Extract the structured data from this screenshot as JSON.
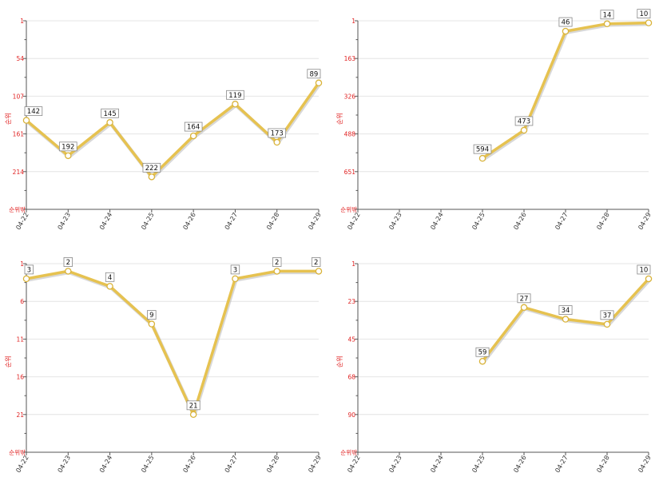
{
  "theme": {
    "line_color": "#e6c250",
    "point_stroke": "#d9b33a",
    "ytick_color": "#e02020"
  },
  "chart_data": [
    {
      "type": "line",
      "categories": [
        "04-22",
        "04-23",
        "04-24",
        "04-25",
        "04-26",
        "04-27",
        "04-28",
        "04-29"
      ],
      "values": [
        142,
        192,
        145,
        222,
        164,
        119,
        173,
        89
      ],
      "yticks": [
        "1",
        "54",
        "107",
        "161",
        "214"
      ],
      "ylim": [
        1,
        268
      ],
      "y_inverted": true,
      "ylabel": "순위",
      "ybottom_label": "순위밖",
      "grid": true
    },
    {
      "type": "line",
      "categories": [
        "04-22",
        "04-23",
        "04-24",
        "04-25",
        "04-26",
        "04-27",
        "04-28",
        "04-29"
      ],
      "values": [
        null,
        null,
        null,
        594,
        473,
        46,
        14,
        10
      ],
      "yticks": [
        "1",
        "163",
        "326",
        "488",
        "651"
      ],
      "ylim": [
        1,
        814
      ],
      "y_inverted": true,
      "ylabel": "순위",
      "ybottom_label": "순위밖",
      "grid": true
    },
    {
      "type": "line",
      "categories": [
        "04-22",
        "04-23",
        "04-24",
        "04-25",
        "04-26",
        "04-27",
        "04-28",
        "04-29"
      ],
      "values": [
        3,
        2,
        4,
        9,
        21,
        3,
        2,
        2
      ],
      "yticks": [
        "1",
        "6",
        "11",
        "16",
        "21"
      ],
      "ylim": [
        1,
        26
      ],
      "y_inverted": true,
      "ylabel": "순위",
      "ybottom_label": "순위밖",
      "grid": true
    },
    {
      "type": "line",
      "categories": [
        "04-22",
        "04-23",
        "04-24",
        "04-25",
        "04-26",
        "04-27",
        "04-28",
        "04-29"
      ],
      "values": [
        null,
        null,
        null,
        59,
        27,
        34,
        37,
        10
      ],
      "yticks": [
        "1",
        "23",
        "45",
        "68",
        "90"
      ],
      "ylim": [
        1,
        113
      ],
      "y_inverted": true,
      "ylabel": "순위",
      "ybottom_label": "순위밖",
      "grid": true
    }
  ]
}
